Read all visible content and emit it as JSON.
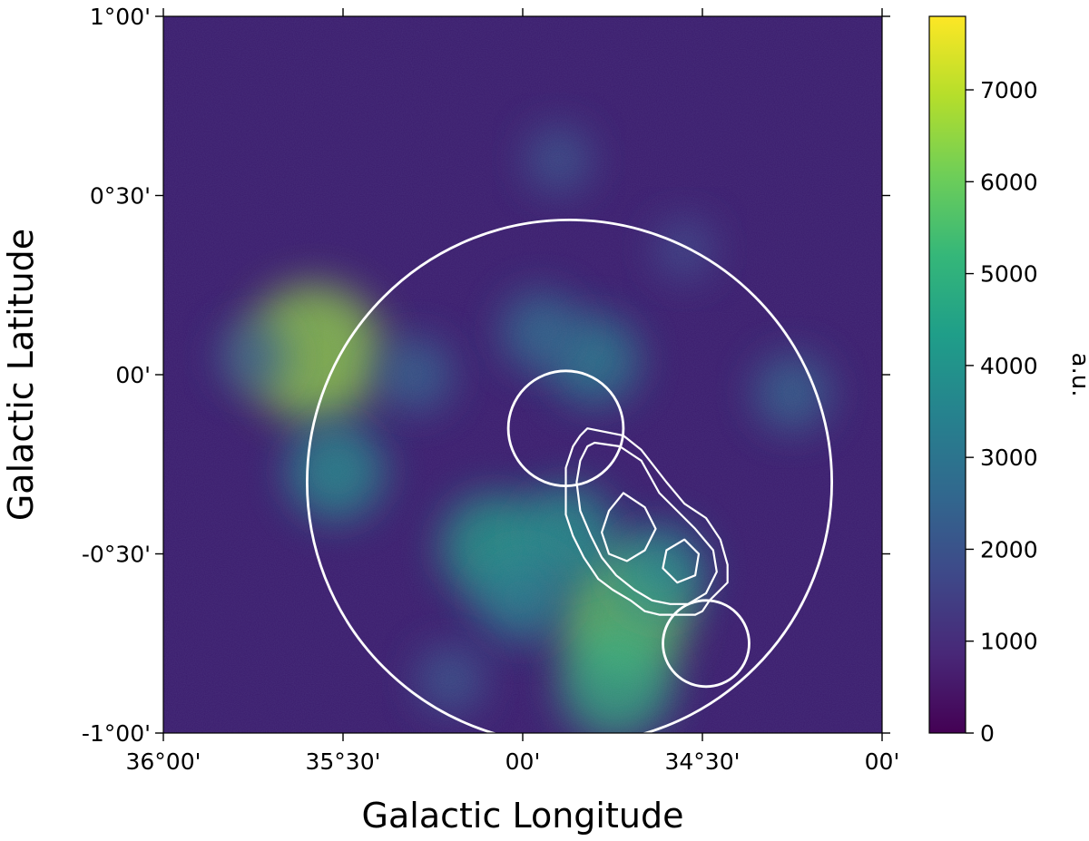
{
  "chart_data": {
    "type": "heatmap",
    "xlabel": "Galactic Longitude",
    "ylabel": "Galactic Latitude",
    "xlim": [
      36.0,
      34.0
    ],
    "ylim": [
      -1.0,
      1.0
    ],
    "x_ticks": [
      {
        "value": 36.0,
        "label": "36°00'"
      },
      {
        "value": 35.5,
        "label": "35°30'"
      },
      {
        "value": 35.0,
        "label": "00'"
      },
      {
        "value": 34.5,
        "label": "34°30'"
      },
      {
        "value": 34.0,
        "label": "00'"
      }
    ],
    "y_ticks": [
      {
        "value": 1.0,
        "label": "1°00'"
      },
      {
        "value": 0.5,
        "label": "0°30'"
      },
      {
        "value": 0.0,
        "label": "00'"
      },
      {
        "value": -0.5,
        "label": "-0°30'"
      },
      {
        "value": -1.0,
        "label": "-1°00'"
      }
    ],
    "colorbar": {
      "label": "a.u.",
      "colormap": "viridis",
      "range": [
        0,
        7800
      ],
      "ticks": [
        {
          "value": 0,
          "label": "0"
        },
        {
          "value": 1000,
          "label": "1000"
        },
        {
          "value": 2000,
          "label": "2000"
        },
        {
          "value": 3000,
          "label": "3000"
        },
        {
          "value": 4000,
          "label": "4000"
        },
        {
          "value": 5000,
          "label": "5000"
        },
        {
          "value": 6000,
          "label": "6000"
        },
        {
          "value": 7000,
          "label": "7000"
        }
      ],
      "colors": [
        "#440154",
        "#482878",
        "#3e4989",
        "#31688e",
        "#26828e",
        "#1f9e89",
        "#35b779",
        "#6ece58",
        "#b5de2b",
        "#fde725"
      ]
    },
    "overlays": [
      {
        "shape": "circle",
        "center": [
          34.87,
          -0.3
        ],
        "radius_deg": 0.73,
        "color": "#ffffff"
      },
      {
        "shape": "circle",
        "center": [
          34.88,
          -0.15
        ],
        "radius_deg": 0.16,
        "color": "#ffffff"
      },
      {
        "shape": "circle",
        "center": [
          34.49,
          -0.75
        ],
        "radius_deg": 0.12,
        "color": "#ffffff"
      }
    ],
    "contours": [
      {
        "level": "outer",
        "color": "#ffffff",
        "path": [
          [
            34.82,
            -0.15
          ],
          [
            34.72,
            -0.17
          ],
          [
            34.67,
            -0.21
          ],
          [
            34.6,
            -0.3
          ],
          [
            34.55,
            -0.36
          ],
          [
            34.49,
            -0.4
          ],
          [
            34.45,
            -0.46
          ],
          [
            34.43,
            -0.53
          ],
          [
            34.43,
            -0.58
          ],
          [
            34.48,
            -0.63
          ],
          [
            34.5,
            -0.66
          ],
          [
            34.52,
            -0.67
          ],
          [
            34.58,
            -0.67
          ],
          [
            34.62,
            -0.67
          ],
          [
            34.66,
            -0.66
          ],
          [
            34.7,
            -0.63
          ],
          [
            34.75,
            -0.6
          ],
          [
            34.79,
            -0.57
          ],
          [
            34.83,
            -0.51
          ],
          [
            34.86,
            -0.45
          ],
          [
            34.88,
            -0.39
          ],
          [
            34.88,
            -0.32
          ],
          [
            34.88,
            -0.26
          ],
          [
            34.86,
            -0.2
          ],
          [
            34.84,
            -0.17
          ],
          [
            34.82,
            -0.15
          ]
        ]
      },
      {
        "level": "middle",
        "color": "#ffffff",
        "path": [
          [
            34.8,
            -0.19
          ],
          [
            34.73,
            -0.2
          ],
          [
            34.67,
            -0.24
          ],
          [
            34.62,
            -0.33
          ],
          [
            34.57,
            -0.38
          ],
          [
            34.52,
            -0.43
          ],
          [
            34.47,
            -0.49
          ],
          [
            34.46,
            -0.55
          ],
          [
            34.49,
            -0.61
          ],
          [
            34.54,
            -0.64
          ],
          [
            34.59,
            -0.64
          ],
          [
            34.64,
            -0.63
          ],
          [
            34.69,
            -0.6
          ],
          [
            34.74,
            -0.56
          ],
          [
            34.78,
            -0.51
          ],
          [
            34.81,
            -0.45
          ],
          [
            34.84,
            -0.38
          ],
          [
            34.85,
            -0.3
          ],
          [
            34.84,
            -0.24
          ],
          [
            34.82,
            -0.2
          ],
          [
            34.8,
            -0.19
          ]
        ]
      },
      {
        "level": "inner",
        "color": "#ffffff",
        "path": [
          [
            34.72,
            -0.33
          ],
          [
            34.66,
            -0.37
          ],
          [
            34.63,
            -0.43
          ],
          [
            34.66,
            -0.49
          ],
          [
            34.71,
            -0.52
          ],
          [
            34.76,
            -0.5
          ],
          [
            34.78,
            -0.44
          ],
          [
            34.76,
            -0.38
          ],
          [
            34.72,
            -0.33
          ]
        ]
      },
      {
        "level": "inner",
        "color": "#ffffff",
        "path": [
          [
            34.55,
            -0.46
          ],
          [
            34.51,
            -0.5
          ],
          [
            34.52,
            -0.56
          ],
          [
            34.57,
            -0.58
          ],
          [
            34.61,
            -0.54
          ],
          [
            34.6,
            -0.49
          ],
          [
            34.55,
            -0.46
          ]
        ]
      }
    ],
    "sources": [
      {
        "l": 35.58,
        "b": 0.06,
        "value": 6500
      },
      {
        "l": 34.72,
        "b": -0.67,
        "value": 6000
      },
      {
        "l": 34.74,
        "b": -0.86,
        "value": 5000
      },
      {
        "l": 35.08,
        "b": -0.48,
        "value": 4500
      },
      {
        "l": 35.52,
        "b": -0.27,
        "value": 4000
      },
      {
        "l": 34.8,
        "b": 0.04,
        "value": 3500
      },
      {
        "l": 34.88,
        "b": -0.45,
        "value": 4200
      },
      {
        "l": 34.62,
        "b": -0.55,
        "value": 3800
      },
      {
        "l": 35.0,
        "b": -0.62,
        "value": 3600
      },
      {
        "l": 34.95,
        "b": 0.12,
        "value": 2900
      },
      {
        "l": 35.3,
        "b": 0.0,
        "value": 2600
      },
      {
        "l": 34.25,
        "b": -0.05,
        "value": 2700
      },
      {
        "l": 34.9,
        "b": 0.6,
        "value": 2100
      },
      {
        "l": 35.75,
        "b": 0.05,
        "value": 2300
      },
      {
        "l": 35.2,
        "b": -0.85,
        "value": 2200
      },
      {
        "l": 34.55,
        "b": 0.35,
        "value": 1800
      }
    ]
  }
}
